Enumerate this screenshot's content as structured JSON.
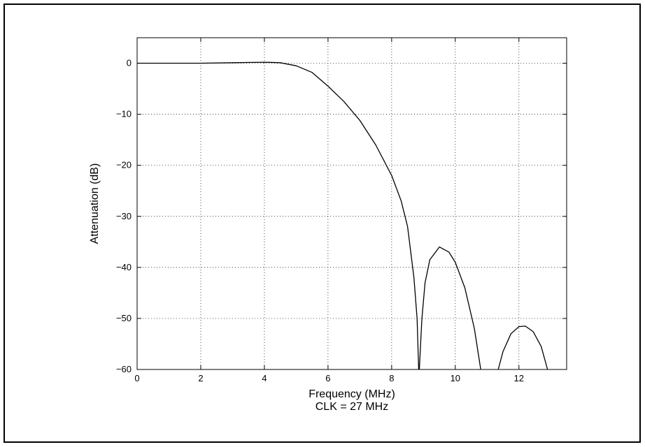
{
  "chart_data": {
    "type": "line",
    "title": "",
    "xlabel": "Frequency (MHz)",
    "xlabel_sub": "CLK = 27 MHz",
    "ylabel": "Attenuation (dB)",
    "xlim": [
      0,
      13.5
    ],
    "ylim": [
      -60,
      5
    ],
    "x_ticks": [
      0,
      2,
      4,
      6,
      8,
      10,
      12
    ],
    "y_ticks": [
      0,
      -10,
      -20,
      -30,
      -40,
      -50,
      -60
    ],
    "x_tick_labels": [
      "0",
      "2",
      "4",
      "6",
      "8",
      "10",
      "12"
    ],
    "y_tick_labels": [
      "0",
      "−10",
      "−20",
      "−30",
      "−40",
      "−50",
      "−60"
    ],
    "grid": true,
    "line_color": "#000000",
    "series": [
      {
        "segments": [
          {
            "x": [
              0,
              1,
              2,
              3,
              4,
              4.5,
              5,
              5.5,
              6,
              6.5,
              7,
              7.5,
              8,
              8.3,
              8.5,
              8.7,
              8.8,
              8.85
            ],
            "y": [
              0,
              0,
              0,
              0.1,
              0.2,
              0.1,
              -0.5,
              -1.8,
              -4.5,
              -7.5,
              -11.2,
              -16,
              -22,
              -27,
              -32,
              -42,
              -50,
              -60
            ]
          },
          {
            "x": [
              8.87,
              8.95,
              9.05,
              9.2,
              9.5,
              9.8,
              10.0,
              10.3,
              10.6,
              10.8
            ],
            "y": [
              -60,
              -50,
              -43,
              -38.5,
              -36,
              -37,
              -39,
              -44,
              -52,
              -60
            ]
          },
          {
            "x": [
              11.35,
              11.5,
              11.75,
              12.0,
              12.2,
              12.45,
              12.7,
              12.9
            ],
            "y": [
              -60,
              -56.5,
              -53,
              -51.6,
              -51.5,
              -52.6,
              -55.5,
              -60
            ]
          }
        ]
      }
    ]
  }
}
